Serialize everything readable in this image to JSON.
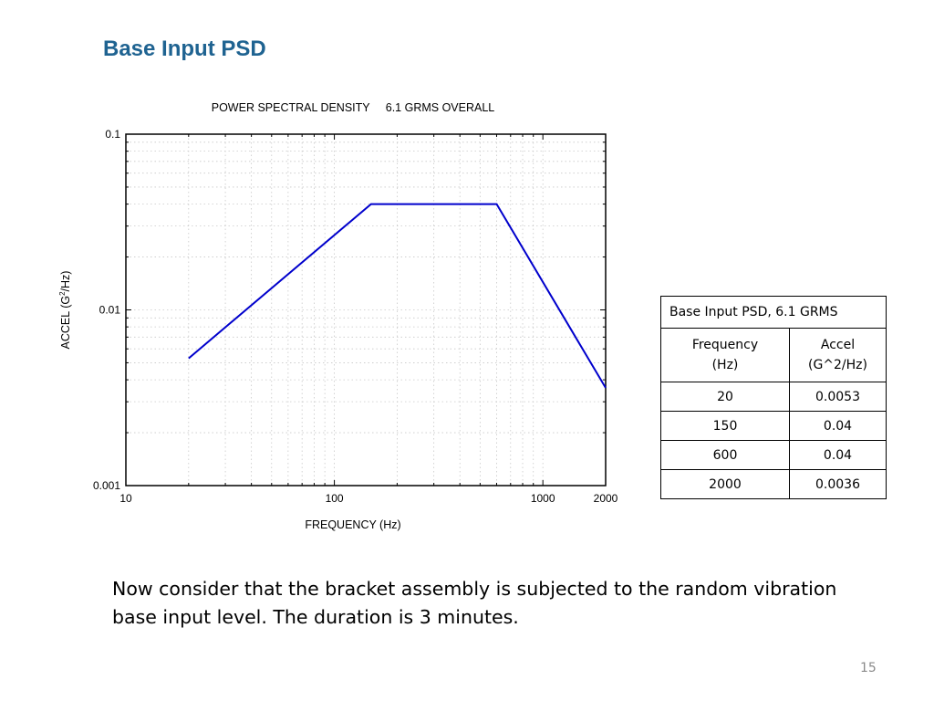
{
  "slide": {
    "title": "Base Input PSD",
    "body_line1": "Now consider that the bracket assembly is subjected to the random vibration",
    "body_line2": "base input level. The duration is 3 minutes.",
    "page_number": "15",
    "title_color": "#1f6391"
  },
  "chart_data": {
    "type": "line",
    "title": "POWER SPECTRAL DENSITY     6.1 GRMS OVERALL",
    "xlabel": "FREQUENCY (Hz)",
    "ylabel_prefix": "ACCEL (G",
    "ylabel_sup": "2",
    "ylabel_suffix": "/Hz)",
    "x_scale": "log",
    "y_scale": "log",
    "xlim": [
      10,
      2000
    ],
    "ylim": [
      0.001,
      0.1
    ],
    "x_ticks": [
      {
        "value": 10,
        "label": "10"
      },
      {
        "value": 100,
        "label": "100"
      },
      {
        "value": 1000,
        "label": "1000"
      },
      {
        "value": 2000,
        "label": "2000"
      }
    ],
    "y_ticks": [
      {
        "value": 0.001,
        "label": "0.001"
      },
      {
        "value": 0.01,
        "label": "0.01"
      },
      {
        "value": 0.1,
        "label": "0.1"
      }
    ],
    "grid": true,
    "line_color": "#0000cc",
    "series": [
      {
        "x": [
          20,
          150,
          600,
          2000
        ],
        "y": [
          0.0053,
          0.04,
          0.04,
          0.0036
        ]
      }
    ]
  },
  "table": {
    "caption": "Base Input PSD,  6.1 GRMS",
    "header_col1_line1": "Frequency",
    "header_col1_line2": "(Hz)",
    "header_col2_line1": "Accel",
    "header_col2_line2": "(G^2/Hz)",
    "rows": [
      {
        "freq": "20",
        "accel": "0.0053"
      },
      {
        "freq": "150",
        "accel": "0.04"
      },
      {
        "freq": "600",
        "accel": "0.04"
      },
      {
        "freq": "2000",
        "accel": "0.0036"
      }
    ]
  }
}
